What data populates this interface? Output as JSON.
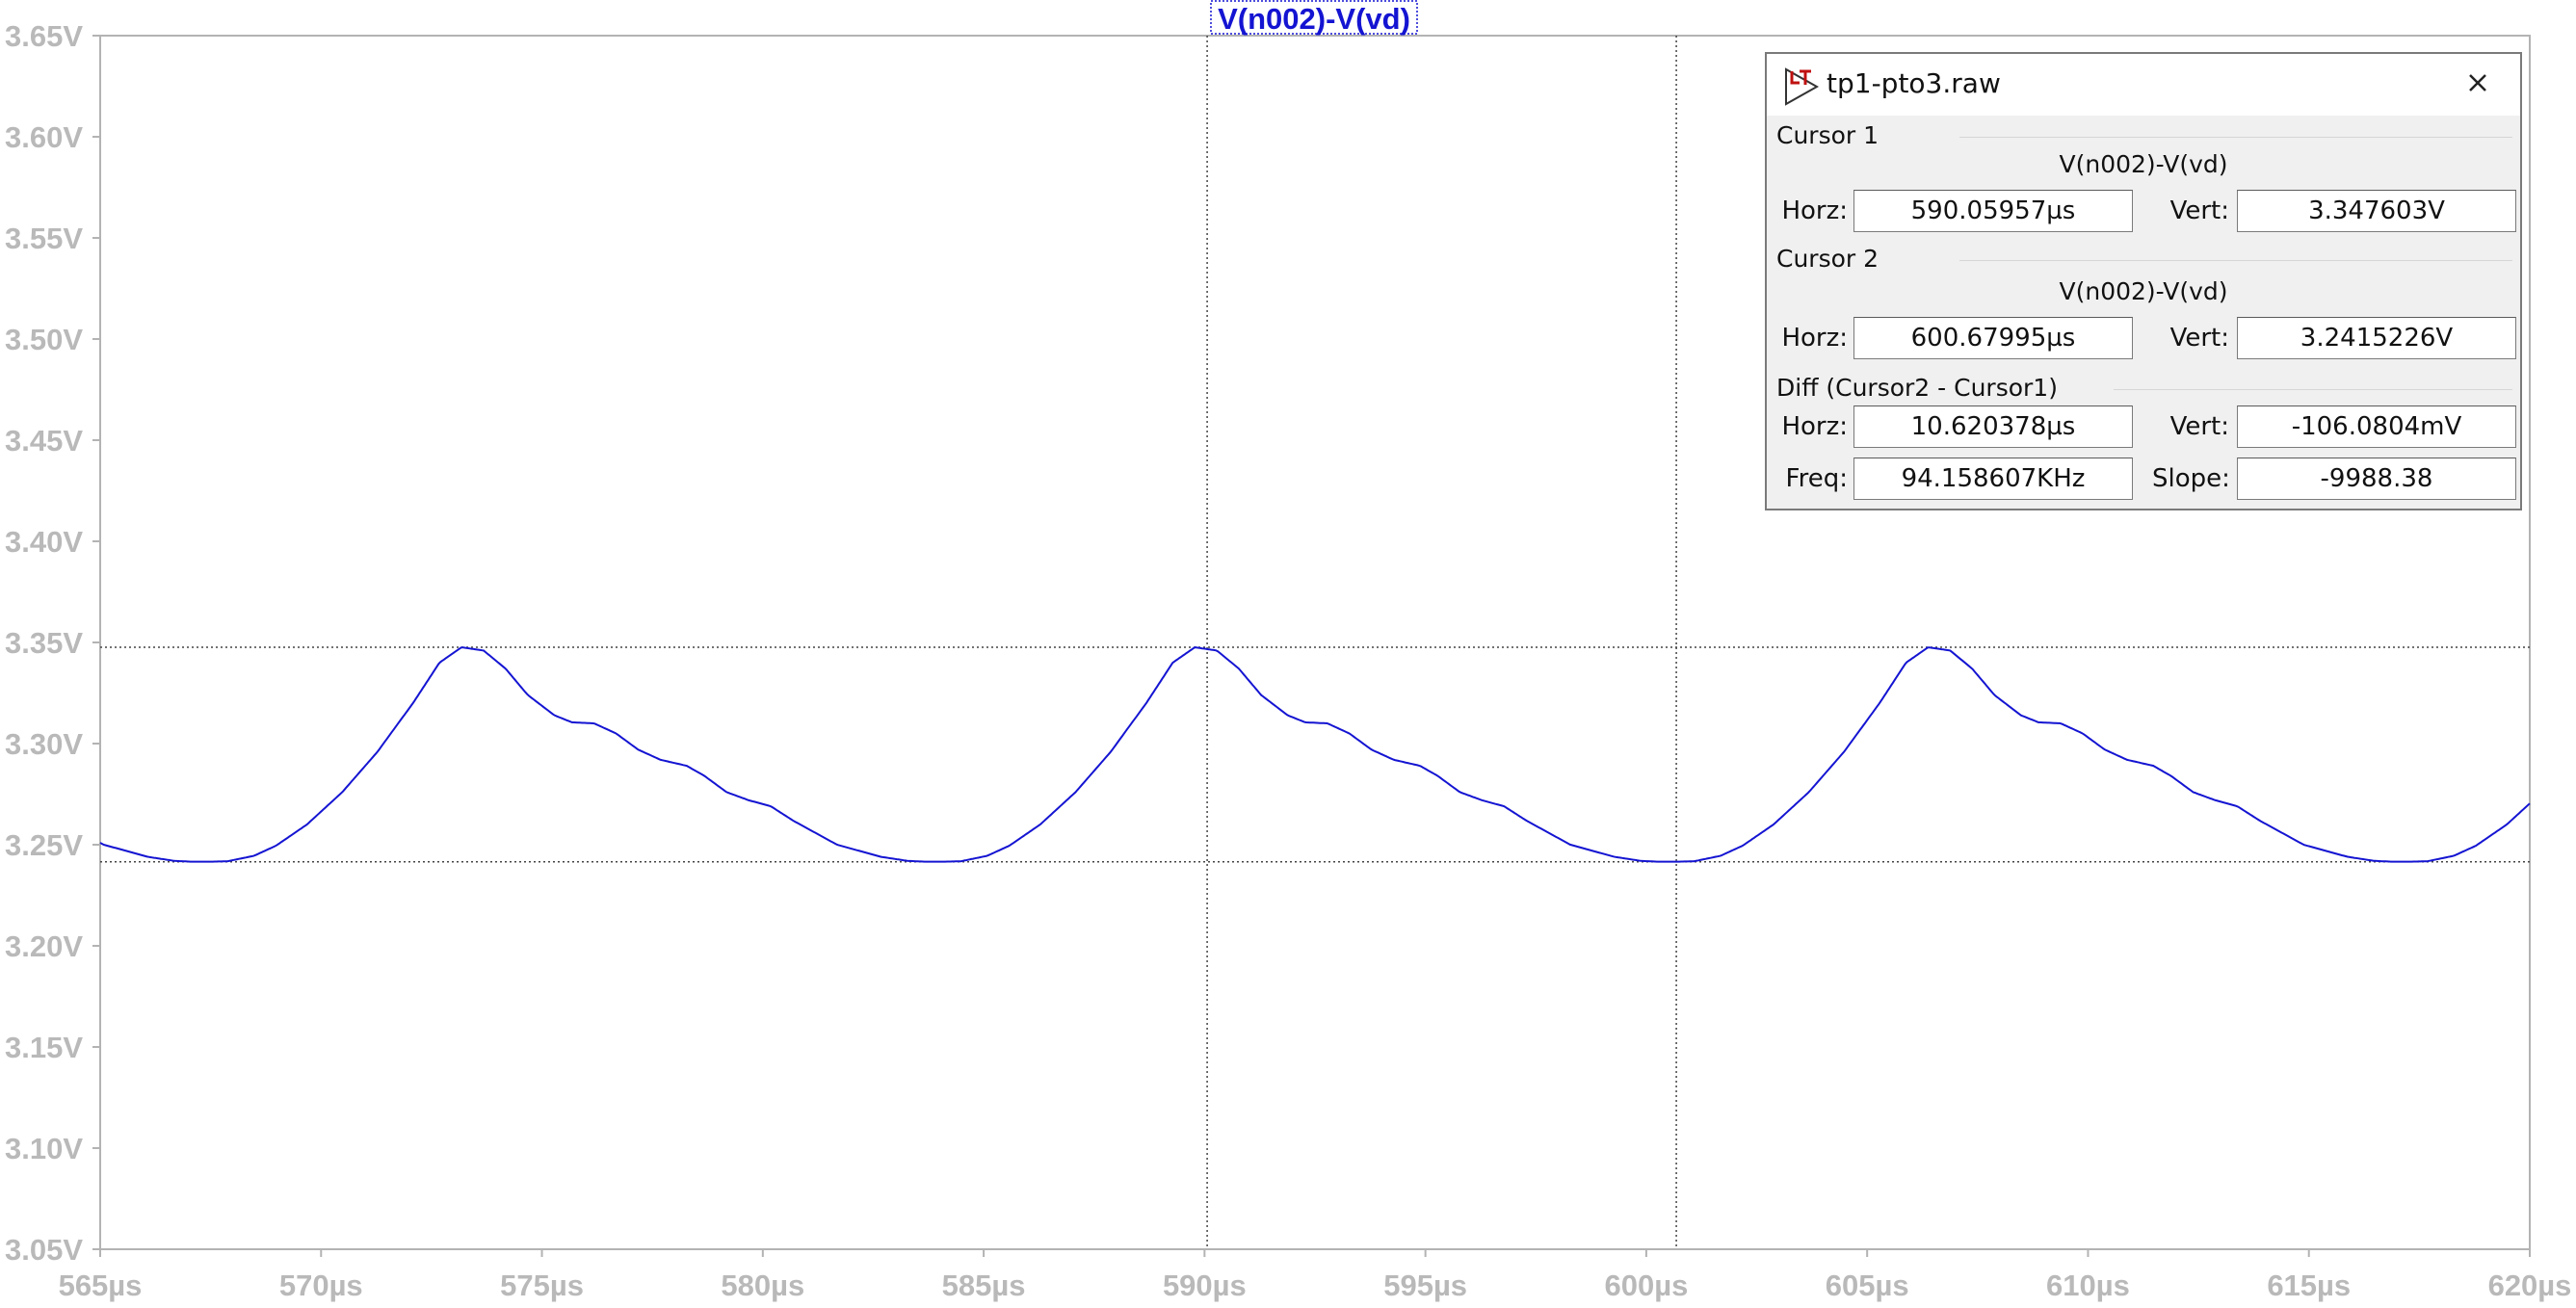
{
  "trace_title": "V(n002)-V(vd)",
  "colors": {
    "trace": "#1414d2",
    "grid_frame": "#b3b3b3",
    "tick_label": "#b9b9b9",
    "cursor_line": "#444444"
  },
  "chart_data": {
    "type": "line",
    "title": "V(n002)-V(vd)",
    "x_unit": "µs",
    "y_unit": "V",
    "xlim": [
      565,
      620
    ],
    "ylim": [
      3.05,
      3.65
    ],
    "x_ticks": [
      "565µs",
      "570µs",
      "575µs",
      "580µs",
      "585µs",
      "590µs",
      "595µs",
      "600µs",
      "605µs",
      "610µs",
      "615µs",
      "620µs"
    ],
    "y_ticks": [
      "3.65V",
      "3.60V",
      "3.55V",
      "3.50V",
      "3.45V",
      "3.40V",
      "3.35V",
      "3.30V",
      "3.25V",
      "3.20V",
      "3.15V",
      "3.10V",
      "3.05V"
    ],
    "grid": false,
    "series": [
      {
        "name": "V(n002)-V(vd)",
        "period": 16.6,
        "cycle_x": [
          0.0,
          0.4,
          1.0,
          1.5,
          2.2,
          3.0,
          3.8,
          4.6,
          5.2,
          5.7,
          6.2,
          6.7,
          7.2,
          7.8,
          8.2,
          8.7,
          9.2,
          9.7,
          10.2,
          10.8,
          11.2,
          11.7,
          12.2,
          12.7,
          13.2,
          13.7,
          14.2,
          14.7,
          15.2,
          15.8,
          16.2,
          16.6
        ],
        "cycle_y": [
          3.2416,
          3.2418,
          3.2445,
          3.2495,
          3.26,
          3.276,
          3.296,
          3.32,
          3.34,
          3.3476,
          3.346,
          3.337,
          3.324,
          3.314,
          3.3105,
          3.31,
          3.305,
          3.297,
          3.292,
          3.289,
          3.284,
          3.276,
          3.272,
          3.269,
          3.262,
          3.256,
          3.25,
          3.247,
          3.244,
          3.242,
          3.2416,
          3.2416
        ],
        "first_min_x": 567.48,
        "x_range": [
          565,
          620
        ]
      }
    ]
  },
  "cursors": {
    "cursor1": {
      "x": 590.05957,
      "y": 3.347603
    },
    "cursor2": {
      "x": 600.67995,
      "y": 3.2415226
    }
  },
  "dialog": {
    "title": "tp1-pto3.raw",
    "logo_icon": "ltspice-logo-icon",
    "close_icon": "close-icon",
    "cursor1": {
      "heading": "Cursor 1",
      "trace": "V(n002)-V(vd)",
      "horz_label": "Horz:",
      "horz_value": "590.05957µs",
      "vert_label": "Vert:",
      "vert_value": "3.347603V"
    },
    "cursor2": {
      "heading": "Cursor 2",
      "trace": "V(n002)-V(vd)",
      "horz_label": "Horz:",
      "horz_value": "600.67995µs",
      "vert_label": "Vert:",
      "vert_value": "3.2415226V"
    },
    "diff": {
      "heading": "Diff (Cursor2 - Cursor1)",
      "horz_label": "Horz:",
      "horz_value": "10.620378µs",
      "vert_label": "Vert:",
      "vert_value": "-106.0804mV",
      "freq_label": "Freq:",
      "freq_value": "94.158607KHz",
      "slope_label": "Slope:",
      "slope_value": "-9988.38"
    }
  }
}
